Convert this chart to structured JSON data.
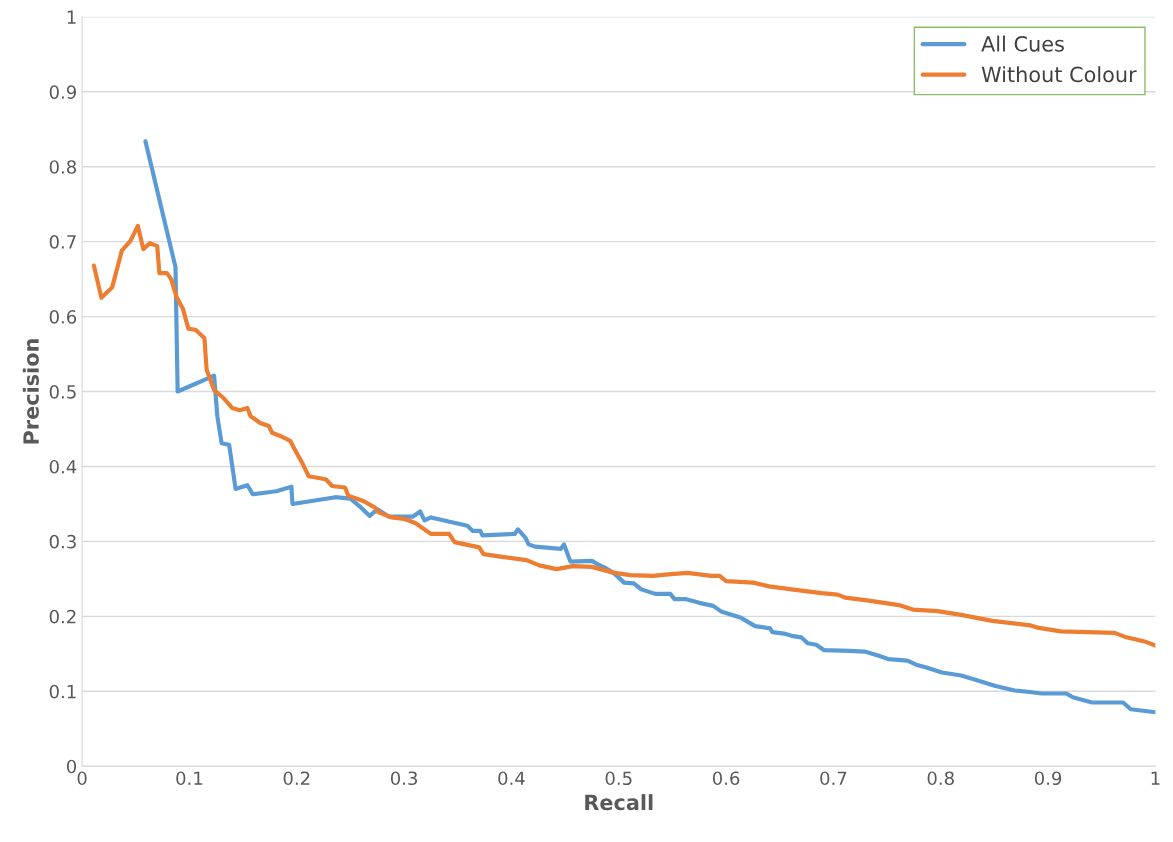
{
  "chart_data": {
    "type": "line",
    "xlabel": "Recall",
    "ylabel": "Precision",
    "xlim": [
      0,
      1
    ],
    "ylim": [
      0,
      1
    ],
    "xticks": [
      0,
      0.1,
      0.2,
      0.3,
      0.4,
      0.5,
      0.6,
      0.7,
      0.8,
      0.9,
      1
    ],
    "yticks": [
      0,
      0.1,
      0.2,
      0.3,
      0.4,
      0.5,
      0.6,
      0.7,
      0.8,
      0.9,
      1
    ],
    "grid": "y",
    "legend": "top right",
    "marker": "none",
    "line_style": "solid",
    "series": [
      {
        "name": "All Cues",
        "color": "#5b9bd5",
        "x": [
          0.059,
          0.087,
          0.089,
          0.121,
          0.123,
          0.126,
          0.13,
          0.137,
          0.143,
          0.154,
          0.159,
          0.181,
          0.195,
          0.196,
          0.236,
          0.25,
          0.26,
          0.268,
          0.275,
          0.286,
          0.308,
          0.315,
          0.319,
          0.325,
          0.359,
          0.364,
          0.371,
          0.373,
          0.403,
          0.406,
          0.413,
          0.416,
          0.422,
          0.446,
          0.449,
          0.455,
          0.475,
          0.481,
          0.487,
          0.496,
          0.505,
          0.514,
          0.521,
          0.534,
          0.548,
          0.552,
          0.562,
          0.575,
          0.588,
          0.596,
          0.614,
          0.627,
          0.641,
          0.643,
          0.654,
          0.661,
          0.67,
          0.676,
          0.684,
          0.691,
          0.715,
          0.729,
          0.743,
          0.751,
          0.769,
          0.778,
          0.786,
          0.801,
          0.819,
          0.833,
          0.851,
          0.869,
          0.883,
          0.894,
          0.917,
          0.923,
          0.941,
          0.97,
          0.977,
          1.0
        ],
        "values": [
          0.834,
          0.666,
          0.5,
          0.52,
          0.521,
          0.467,
          0.431,
          0.429,
          0.37,
          0.375,
          0.363,
          0.367,
          0.373,
          0.35,
          0.359,
          0.357,
          0.345,
          0.334,
          0.343,
          0.333,
          0.333,
          0.34,
          0.328,
          0.332,
          0.321,
          0.314,
          0.314,
          0.308,
          0.31,
          0.316,
          0.305,
          0.296,
          0.293,
          0.29,
          0.296,
          0.273,
          0.274,
          0.269,
          0.265,
          0.257,
          0.245,
          0.244,
          0.236,
          0.23,
          0.23,
          0.223,
          0.223,
          0.218,
          0.214,
          0.206,
          0.198,
          0.187,
          0.184,
          0.179,
          0.177,
          0.174,
          0.172,
          0.164,
          0.162,
          0.155,
          0.154,
          0.153,
          0.147,
          0.143,
          0.141,
          0.135,
          0.132,
          0.125,
          0.121,
          0.115,
          0.107,
          0.101,
          0.099,
          0.097,
          0.097,
          0.092,
          0.085,
          0.085,
          0.076,
          0.072
        ]
      },
      {
        "name": "Without Colour",
        "color": "#ed7d31",
        "x": [
          0.011,
          0.018,
          0.028,
          0.037,
          0.045,
          0.052,
          0.057,
          0.063,
          0.07,
          0.072,
          0.079,
          0.083,
          0.088,
          0.094,
          0.099,
          0.106,
          0.114,
          0.116,
          0.123,
          0.132,
          0.14,
          0.147,
          0.154,
          0.157,
          0.166,
          0.174,
          0.177,
          0.184,
          0.194,
          0.198,
          0.205,
          0.211,
          0.227,
          0.233,
          0.245,
          0.248,
          0.262,
          0.273,
          0.276,
          0.288,
          0.3,
          0.31,
          0.325,
          0.342,
          0.347,
          0.37,
          0.374,
          0.393,
          0.414,
          0.426,
          0.442,
          0.457,
          0.475,
          0.496,
          0.511,
          0.532,
          0.546,
          0.564,
          0.586,
          0.594,
          0.6,
          0.625,
          0.64,
          0.661,
          0.689,
          0.704,
          0.711,
          0.733,
          0.761,
          0.774,
          0.797,
          0.819,
          0.848,
          0.883,
          0.89,
          0.912,
          0.962,
          0.973,
          0.991,
          1.0
        ],
        "values": [
          0.668,
          0.625,
          0.639,
          0.688,
          0.701,
          0.721,
          0.69,
          0.698,
          0.694,
          0.658,
          0.658,
          0.65,
          0.626,
          0.61,
          0.584,
          0.582,
          0.571,
          0.529,
          0.502,
          0.491,
          0.478,
          0.475,
          0.478,
          0.467,
          0.458,
          0.454,
          0.445,
          0.441,
          0.434,
          0.423,
          0.405,
          0.387,
          0.383,
          0.374,
          0.372,
          0.361,
          0.354,
          0.345,
          0.339,
          0.332,
          0.33,
          0.325,
          0.31,
          0.31,
          0.299,
          0.292,
          0.283,
          0.279,
          0.275,
          0.268,
          0.263,
          0.267,
          0.266,
          0.258,
          0.255,
          0.254,
          0.256,
          0.258,
          0.254,
          0.254,
          0.247,
          0.245,
          0.24,
          0.236,
          0.231,
          0.229,
          0.225,
          0.221,
          0.215,
          0.209,
          0.207,
          0.202,
          0.194,
          0.188,
          0.185,
          0.18,
          0.178,
          0.172,
          0.166,
          0.161
        ]
      }
    ]
  }
}
